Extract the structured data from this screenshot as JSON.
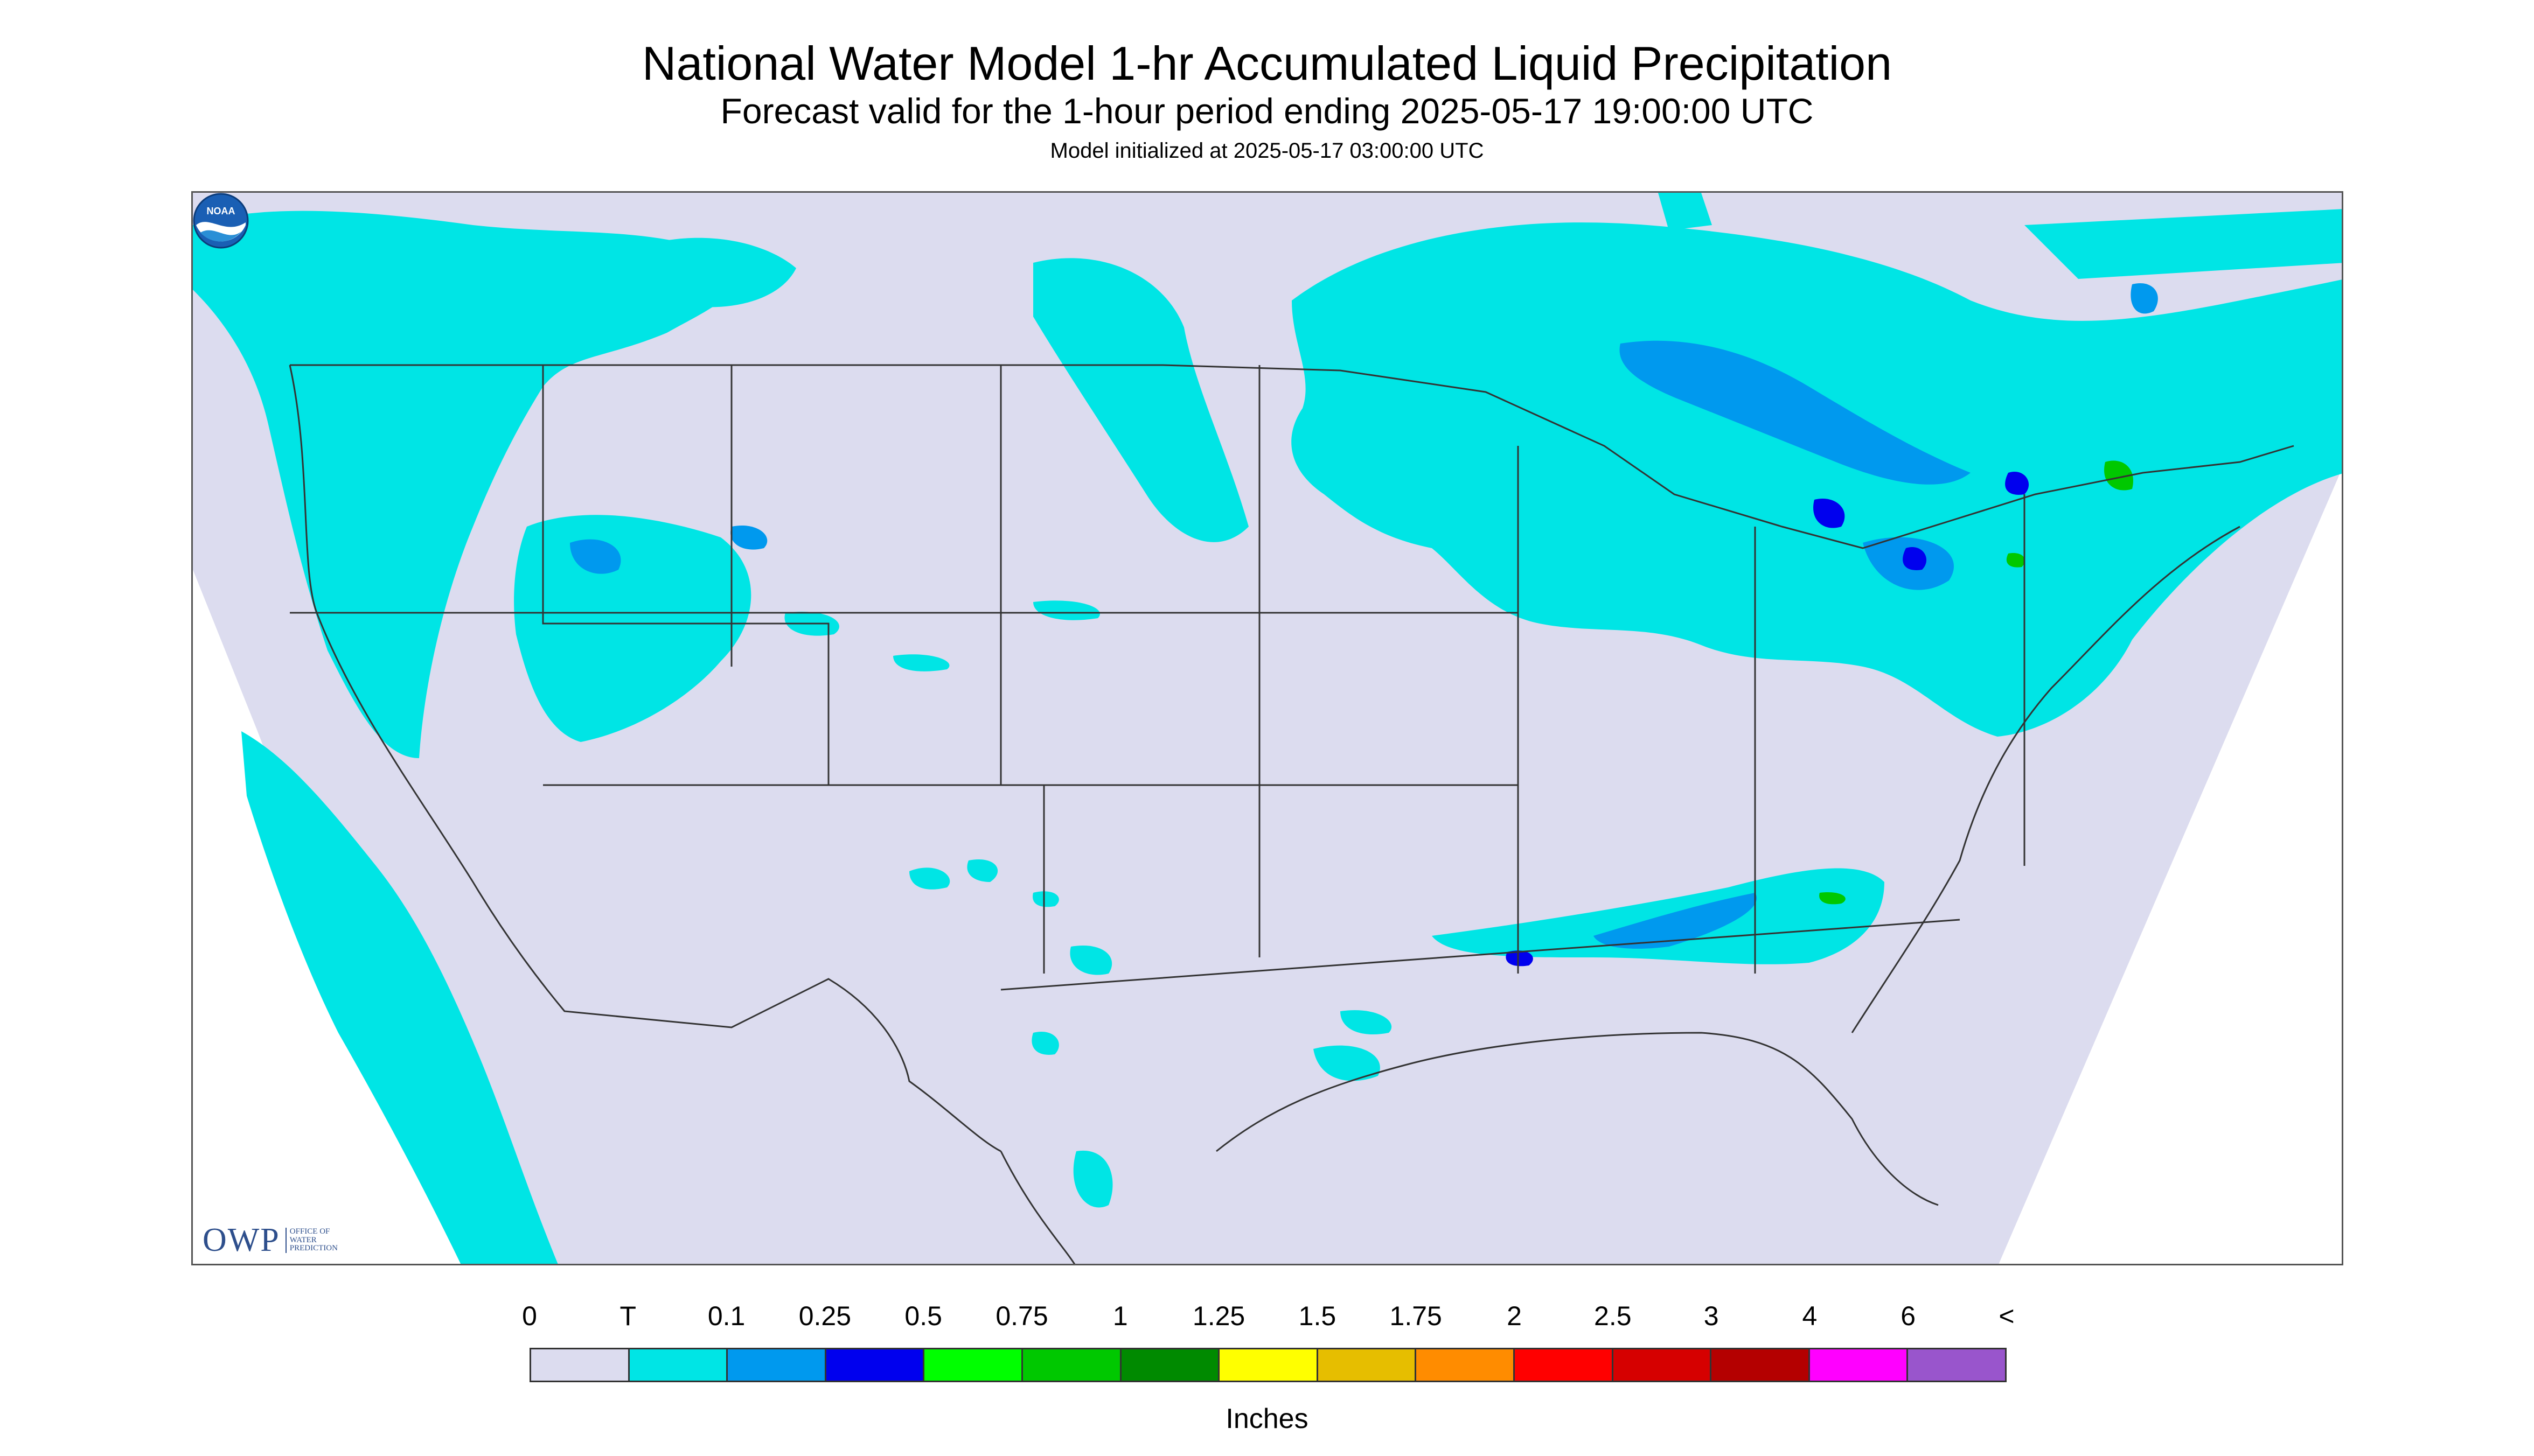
{
  "header": {
    "title": "National Water Model 1-hr Accumulated Liquid Precipitation",
    "subtitle": "Forecast valid for the 1-hour period ending 2025-05-17 19:00:00 UTC",
    "init": "Model initialized at 2025-05-17 03:00:00 UTC"
  },
  "logos": {
    "owp_big": "OWP",
    "owp_small_1": "OFFICE OF",
    "owp_small_2": "WATER",
    "owp_small_3": "PREDICTION",
    "noaa": "NOAA"
  },
  "legend": {
    "labels": [
      "0",
      "T",
      "0.1",
      "0.25",
      "0.5",
      "0.75",
      "1",
      "1.25",
      "1.5",
      "1.75",
      "2",
      "2.5",
      "3",
      "4",
      "6",
      "<"
    ],
    "colors": [
      "#dcdcef",
      "#00e5e5",
      "#0099ee",
      "#0000ee",
      "#00ff00",
      "#00c800",
      "#008a00",
      "#ffff00",
      "#e6be00",
      "#ff8c00",
      "#ff0000",
      "#d60000",
      "#b40000",
      "#ff00ff",
      "#9955cc"
    ],
    "units": "Inches"
  },
  "map": {
    "domain_fill": "#dcdcef",
    "outside_fill": "#ffffff",
    "trace_color": "#00e5e5",
    "light_color": "#0099ee",
    "heavy_color": "#0000ee",
    "green_color": "#00c800"
  }
}
